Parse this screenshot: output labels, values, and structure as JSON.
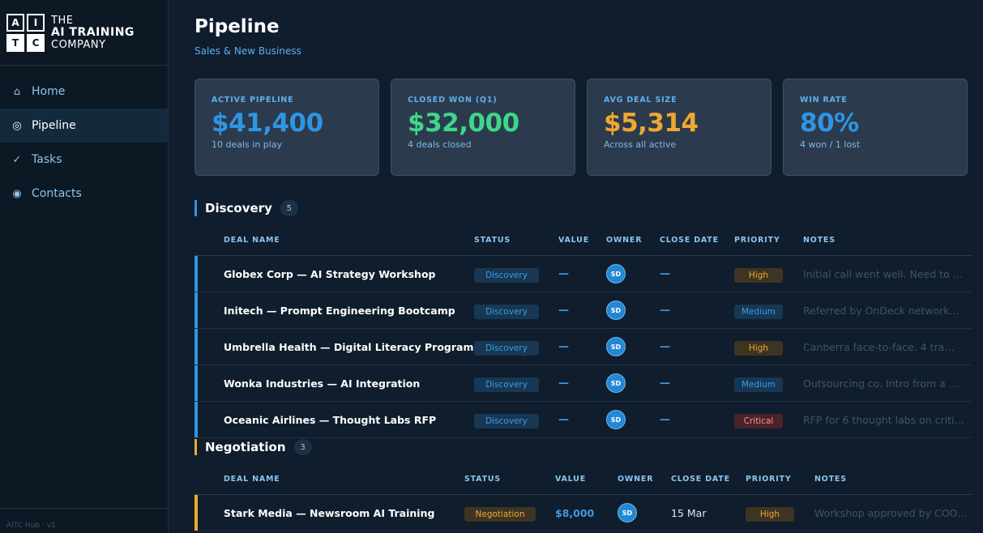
{
  "brand": {
    "logo_letters": [
      "A",
      "I",
      "T",
      "C"
    ],
    "line1": "THE",
    "line2": "AI TRAINING",
    "line3": "COMPANY"
  },
  "nav": [
    {
      "label": "Home",
      "icon": "home-icon",
      "glyph": "⌂"
    },
    {
      "label": "Pipeline",
      "icon": "pipeline-icon",
      "glyph": "◎",
      "active": true
    },
    {
      "label": "Tasks",
      "icon": "check-icon",
      "glyph": "✓"
    },
    {
      "label": "Contacts",
      "icon": "contacts-icon",
      "glyph": "◉"
    }
  ],
  "version": "AITC Hub · v1",
  "page": {
    "title": "Pipeline",
    "subtitle": "Sales & New Business"
  },
  "stats": [
    {
      "label": "ACTIVE PIPELINE",
      "value": "$41,400",
      "sub": "10 deals in play",
      "color": "#2f95e3"
    },
    {
      "label": "CLOSED WON (Q1)",
      "value": "$32,000",
      "sub": "4 deals closed",
      "color": "#3fd68a"
    },
    {
      "label": "AVG DEAL SIZE",
      "value": "$5,314",
      "sub": "Across all active",
      "color": "#f0a830"
    },
    {
      "label": "WIN RATE",
      "value": "80%",
      "sub": "4 won / 1 lost",
      "color": "#2f95e3"
    }
  ],
  "columns": {
    "deal": "DEAL NAME",
    "status": "STATUS",
    "value": "VALUE",
    "owner": "OWNER",
    "close": "CLOSE DATE",
    "priority": "PRIORITY",
    "notes": "NOTES"
  },
  "discovery": {
    "title": "Discovery",
    "count": "5",
    "accent": "#2f95e3",
    "rows": [
      {
        "deal": "Globex Corp — AI Strategy Workshop",
        "status": "Discovery",
        "value": "—",
        "owner": "SD",
        "close": "—",
        "priority": "High",
        "notes": "Initial call went well. Need to …"
      },
      {
        "deal": "Initech — Prompt Engineering Bootcamp",
        "status": "Discovery",
        "value": "—",
        "owner": "SD",
        "close": "—",
        "priority": "Medium",
        "notes": "Referred by OnDeck network…"
      },
      {
        "deal": "Umbrella Health — Digital Literacy Program",
        "status": "Discovery",
        "value": "—",
        "owner": "SD",
        "close": "—",
        "priority": "High",
        "notes": "Canberra face-to-face. 4 tra…"
      },
      {
        "deal": "Wonka Industries — AI Integration",
        "status": "Discovery",
        "value": "—",
        "owner": "SD",
        "close": "—",
        "priority": "Medium",
        "notes": "Outsourcing co. Intro from a …"
      },
      {
        "deal": "Oceanic Airlines — Thought Labs RFP",
        "status": "Discovery",
        "value": "—",
        "owner": "SD",
        "close": "—",
        "priority": "Critical",
        "notes": "RFP for 6 thought labs on criti…"
      }
    ]
  },
  "negotiation": {
    "title": "Negotiation",
    "count": "3",
    "accent": "#f0a830",
    "rows": [
      {
        "deal": "Stark Media — Newsroom AI Training",
        "status": "Negotiation",
        "value": "$8,000",
        "owner": "SD",
        "close": "15 Mar",
        "priority": "High",
        "notes": "Workshop approved by COO…"
      }
    ]
  }
}
